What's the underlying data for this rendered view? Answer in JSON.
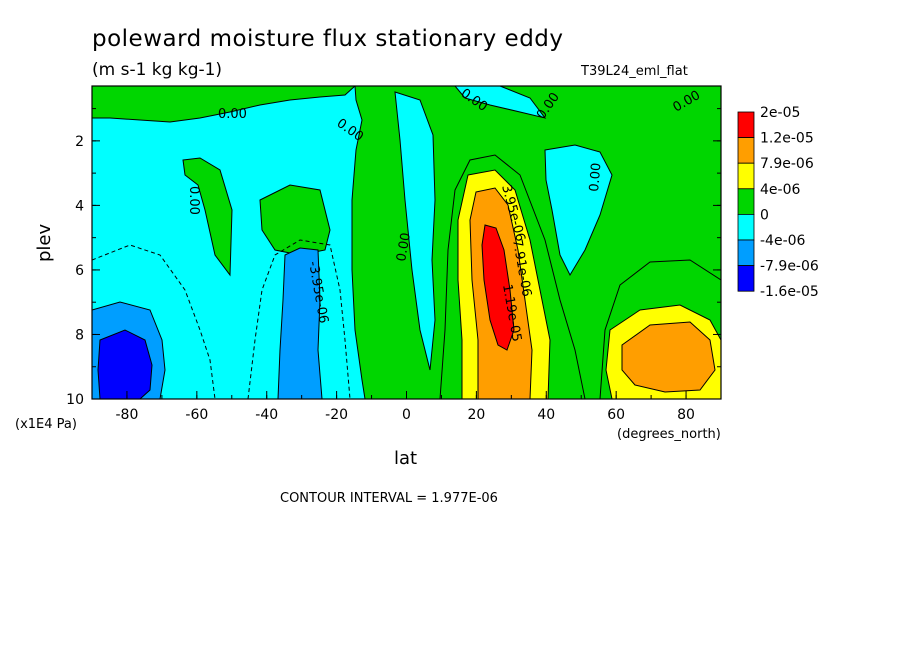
{
  "chart_data": {
    "type": "heatmap",
    "title": "poleward moisture flux stationary eddy",
    "units": "(m s-1 kg kg-1)",
    "run_label": "T39L24_eml_flat",
    "xlabel": "lat",
    "xunits": "(degrees_north)",
    "ylabel": "plev",
    "yunits": "(x1E4 Pa)",
    "xlim": [
      -90,
      90
    ],
    "ylim": [
      10,
      0.3
    ],
    "x_ticks": [
      -80,
      -60,
      -40,
      -20,
      0,
      20,
      40,
      60,
      80
    ],
    "y_ticks": [
      2,
      4,
      6,
      8,
      10
    ],
    "contour_interval_text": "CONTOUR INTERVAL = 1.977E-06",
    "legend": {
      "placement": "right",
      "colors": [
        "#ff0000",
        "#ff9e00",
        "#ffff00",
        "#00d600",
        "#00ffff",
        "#009eff",
        "#0000ff"
      ],
      "labels": [
        "2e-05",
        "1.2e-05",
        "7.9e-06",
        "4e-06",
        "0",
        "-4e-06",
        "-7.9e-06",
        "-1.6e-05"
      ]
    },
    "contour_labels": [
      "0.00",
      "0.00",
      "0.00",
      "0.00",
      "0.00",
      "0.00",
      "0.00",
      "0.00",
      "-3.95e-06",
      "3.95e-06",
      "7.91e-06",
      "1.19e-05"
    ],
    "regions": [
      {
        "level": "0 to 4e-06",
        "color": "#00d600",
        "lat_range": [
          -10,
          90
        ],
        "plev_range": [
          0.3,
          10
        ]
      },
      {
        "level": "4e-06 to 7.9e-06",
        "color": "#ffff00",
        "lat_range": [
          15,
          40
        ],
        "plev_range": [
          3,
          10
        ]
      },
      {
        "level": "7.9e-06 to 1.2e-05",
        "color": "#ff9e00",
        "lat_range": [
          18,
          36
        ],
        "plev_range": [
          3.5,
          10
        ]
      },
      {
        "level": ">1.2e-05",
        "color": "#ff0000",
        "lat_range": [
          23,
          30
        ],
        "plev_range": [
          4.5,
          8.5
        ]
      },
      {
        "level": "7.9e-06 to 1.2e-05",
        "color": "#ff9e00",
        "lat_range": [
          62,
          88
        ],
        "plev_range": [
          7.5,
          10
        ]
      },
      {
        "level": "-4e-06 to -7.9e-06",
        "color": "#009eff",
        "lat_range": [
          -35,
          -25
        ],
        "plev_range": [
          5.5,
          10
        ]
      },
      {
        "level": "-7.9e-06 to -1.6e-05",
        "color": "#0000ff",
        "lat_range": [
          -89,
          -75
        ],
        "plev_range": [
          7.5,
          10
        ]
      }
    ]
  }
}
